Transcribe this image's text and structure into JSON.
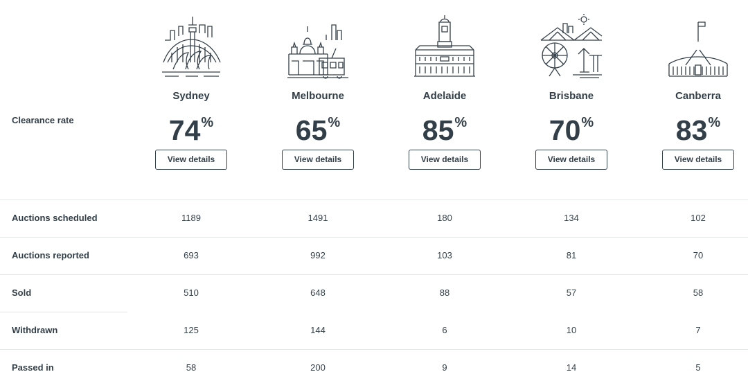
{
  "header": {
    "row_label": "Clearance rate"
  },
  "cities": [
    {
      "name": "Sydney",
      "rate": "74",
      "pct": "%",
      "button": "View details",
      "icon": "sydney-skyline-icon"
    },
    {
      "name": "Melbourne",
      "rate": "65",
      "pct": "%",
      "button": "View details",
      "icon": "melbourne-skyline-icon"
    },
    {
      "name": "Adelaide",
      "rate": "85",
      "pct": "%",
      "button": "View details",
      "icon": "adelaide-skyline-icon"
    },
    {
      "name": "Brisbane",
      "rate": "70",
      "pct": "%",
      "button": "View details",
      "icon": "brisbane-skyline-icon"
    },
    {
      "name": "Canberra",
      "rate": "83",
      "pct": "%",
      "button": "View details",
      "icon": "canberra-parliament-icon"
    }
  ],
  "table": {
    "rows": [
      {
        "label": "Auctions scheduled",
        "values": [
          "1189",
          "1491",
          "180",
          "134",
          "102"
        ]
      },
      {
        "label": "Auctions reported",
        "values": [
          "693",
          "992",
          "103",
          "81",
          "70"
        ]
      },
      {
        "label": "Sold",
        "values": [
          "510",
          "648",
          "88",
          "57",
          "58"
        ]
      },
      {
        "label": "Withdrawn",
        "values": [
          "125",
          "144",
          "6",
          "10",
          "7"
        ]
      },
      {
        "label": "Passed in",
        "values": [
          "58",
          "200",
          "9",
          "14",
          "5"
        ]
      }
    ]
  },
  "colors": {
    "text": "#333f48",
    "divider": "#e4e6e8",
    "background": "#ffffff"
  }
}
